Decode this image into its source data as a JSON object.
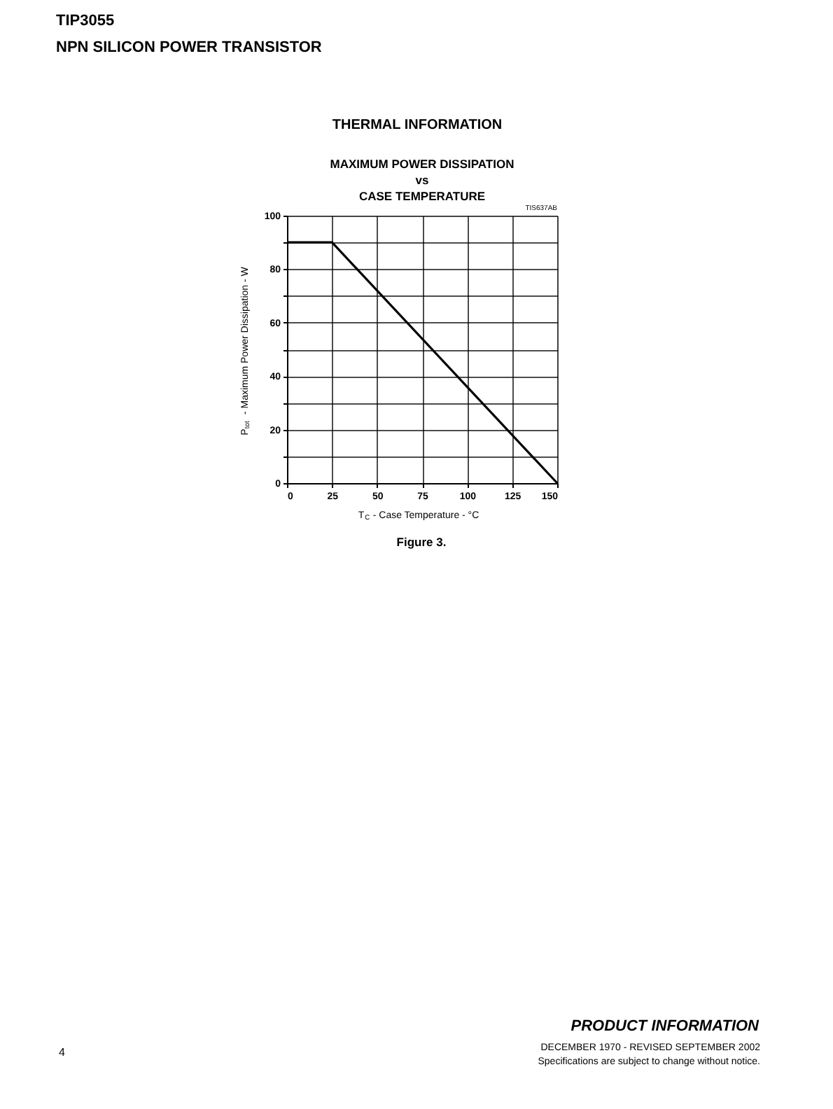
{
  "chart_data": {
    "type": "line",
    "title": "MAXIMUM POWER DISSIPATION\nvs\nCASE TEMPERATURE",
    "xlabel": "T$_{C}$ - Case Temperature - °C",
    "ylabel": "P$_{tot}$ - Maximum Power Dissipation - W",
    "x": [
      0,
      25,
      150
    ],
    "series": [
      {
        "color": "#000000",
        "values": [
          90,
          90,
          0
        ]
      }
    ],
    "xlim": [
      0,
      150
    ],
    "xticks": [
      0,
      25,
      50,
      75,
      100,
      125,
      150
    ],
    "ylim": [
      0,
      100
    ],
    "yticks": [
      0,
      {
        "value": 10,
        "label": null
      },
      20,
      {
        "value": 30,
        "label": null
      },
      40,
      {
        "value": 50,
        "label": null
      },
      60,
      {
        "value": 70,
        "label": null
      },
      80,
      {
        "value": 90,
        "label": null
      },
      100
    ],
    "grid": true,
    "marker": "none",
    "line_style": "solid",
    "annotations": [
      "THERMAL INFORMATION",
      "TIS637AB",
      "Figure 3.",
      "TIP3055",
      "NPN SILICON POWER TRANSISTOR",
      "PRODUCT INFORMATION",
      "4",
      "DECEMBER 1970 - REVISED SEPTEMBER 2002",
      "Specifications are subject to change without notice."
    ]
  }
}
